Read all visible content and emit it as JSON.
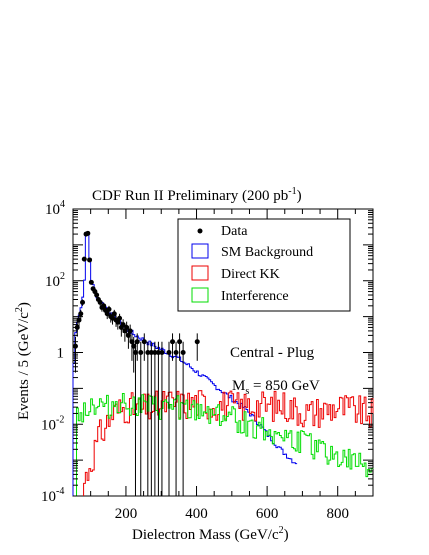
{
  "chart_data": {
    "type": "histogram",
    "title_main": "CDF Run II Preliminary (200 pb",
    "title_sup": "-1",
    "title_close": ")",
    "xlabel_main": "Dielectron Mass (GeV/c",
    "xlabel_sup": "2",
    "xlabel_close": ")",
    "ylabel_main": "Events / 5 (GeV/c",
    "ylabel_sup": "2",
    "ylabel_close": ")",
    "xlim": [
      50,
      900
    ],
    "ylim_log10": [
      -4,
      4
    ],
    "y_scale": "log",
    "x_ticks": [
      {
        "value": 200,
        "label": "200"
      },
      {
        "value": 400,
        "label": "400"
      },
      {
        "value": 600,
        "label": "600"
      },
      {
        "value": 800,
        "label": "800"
      }
    ],
    "y_ticks": [
      {
        "exp": 4,
        "base": "10",
        "sup": "4"
      },
      {
        "exp": 2,
        "base": "10",
        "sup": "2"
      },
      {
        "exp": 0,
        "base": "1",
        "sup": ""
      },
      {
        "exp": -2,
        "base": "10",
        "sup": "-2"
      },
      {
        "exp": -4,
        "base": "10",
        "sup": "-4"
      }
    ],
    "legend": {
      "placement": "top-right",
      "entries": [
        {
          "label": "Data",
          "style": "marker"
        },
        {
          "label": "SM Background",
          "style": "box",
          "color": "#0000ee"
        },
        {
          "label": "Direct KK",
          "style": "box",
          "color": "#ee0000"
        },
        {
          "label": "Interference",
          "style": "box",
          "color": "#00dd00"
        }
      ]
    },
    "annotations": {
      "region": "Central - Plug",
      "mass_main": "M",
      "mass_sub": "s",
      "mass_value": " = 850 GeV"
    },
    "colors": {
      "sm": "#0000ee",
      "kk": "#ee0000",
      "interference": "#00dd00",
      "data": "#000000"
    },
    "bin_width": 5,
    "sm_background": [
      [
        50,
        0.5
      ],
      [
        55,
        3.5
      ],
      [
        60,
        8
      ],
      [
        65,
        12
      ],
      [
        70,
        18
      ],
      [
        75,
        35
      ],
      [
        80,
        120
      ],
      [
        85,
        1800
      ],
      [
        90,
        2000
      ],
      [
        95,
        400
      ],
      [
        100,
        100
      ],
      [
        110,
        50
      ],
      [
        120,
        30
      ],
      [
        140,
        18
      ],
      [
        160,
        11
      ],
      [
        180,
        7
      ],
      [
        200,
        4.5
      ],
      [
        220,
        3.2
      ],
      [
        240,
        2.5
      ],
      [
        260,
        1.9
      ],
      [
        280,
        1.5
      ],
      [
        300,
        1.2
      ],
      [
        320,
        0.95
      ],
      [
        340,
        0.75
      ],
      [
        360,
        0.55
      ],
      [
        380,
        0.4
      ],
      [
        400,
        0.28
      ],
      [
        420,
        0.2
      ],
      [
        440,
        0.14
      ],
      [
        460,
        0.1
      ],
      [
        480,
        0.07
      ],
      [
        500,
        0.05
      ],
      [
        520,
        0.035
      ],
      [
        540,
        0.025
      ],
      [
        560,
        0.015
      ],
      [
        580,
        0.009
      ],
      [
        600,
        0.005
      ],
      [
        620,
        0.003
      ],
      [
        640,
        0.0018
      ],
      [
        660,
        0.0012
      ],
      [
        680,
        0.0008
      ]
    ],
    "direct_kk": [
      [
        80,
        0.00025
      ],
      [
        120,
        0.004
      ],
      [
        160,
        0.02
      ],
      [
        200,
        0.03
      ],
      [
        240,
        0.025
      ],
      [
        280,
        0.03
      ],
      [
        320,
        0.04
      ],
      [
        360,
        0.035
      ],
      [
        400,
        0.04
      ],
      [
        440,
        0.035
      ],
      [
        480,
        0.035
      ],
      [
        520,
        0.03
      ],
      [
        560,
        0.035
      ],
      [
        600,
        0.03
      ],
      [
        640,
        0.035
      ],
      [
        680,
        0.025
      ],
      [
        720,
        0.02
      ],
      [
        760,
        0.025
      ],
      [
        800,
        0.03
      ],
      [
        840,
        0.025
      ],
      [
        880,
        0.02
      ],
      [
        900,
        0.02
      ]
    ],
    "interference": [
      [
        60,
        0.02
      ],
      [
        100,
        0.035
      ],
      [
        140,
        0.03
      ],
      [
        180,
        0.04
      ],
      [
        220,
        0.035
      ],
      [
        260,
        0.03
      ],
      [
        300,
        0.025
      ],
      [
        340,
        0.035
      ],
      [
        380,
        0.02
      ],
      [
        420,
        0.025
      ],
      [
        460,
        0.02
      ],
      [
        500,
        0.015
      ],
      [
        540,
        0.01
      ],
      [
        580,
        0.008
      ],
      [
        620,
        0.006
      ],
      [
        660,
        0.004
      ],
      [
        700,
        0.003
      ],
      [
        740,
        0.002
      ],
      [
        780,
        0.0015
      ],
      [
        820,
        0.001
      ],
      [
        860,
        0.0008
      ],
      [
        900,
        0.0006
      ]
    ],
    "data_points": [
      {
        "x": 57,
        "y": 1.5
      },
      {
        "x": 62,
        "y": 5
      },
      {
        "x": 67,
        "y": 8
      },
      {
        "x": 72,
        "y": 12
      },
      {
        "x": 77,
        "y": 25
      },
      {
        "x": 82,
        "y": 400
      },
      {
        "x": 87,
        "y": 2000
      },
      {
        "x": 92,
        "y": 2100
      },
      {
        "x": 97,
        "y": 380
      },
      {
        "x": 102,
        "y": 90
      },
      {
        "x": 107,
        "y": 60
      },
      {
        "x": 112,
        "y": 50
      },
      {
        "x": 117,
        "y": 40
      },
      {
        "x": 122,
        "y": 30
      },
      {
        "x": 127,
        "y": 25
      },
      {
        "x": 132,
        "y": 18
      },
      {
        "x": 137,
        "y": 20
      },
      {
        "x": 142,
        "y": 15
      },
      {
        "x": 147,
        "y": 12
      },
      {
        "x": 152,
        "y": 16
      },
      {
        "x": 157,
        "y": 10
      },
      {
        "x": 162,
        "y": 9
      },
      {
        "x": 167,
        "y": 12
      },
      {
        "x": 172,
        "y": 8
      },
      {
        "x": 177,
        "y": 7
      },
      {
        "x": 182,
        "y": 9
      },
      {
        "x": 187,
        "y": 5
      },
      {
        "x": 192,
        "y": 6
      },
      {
        "x": 197,
        "y": 4
      },
      {
        "x": 202,
        "y": 5
      },
      {
        "x": 207,
        "y": 3
      },
      {
        "x": 212,
        "y": 4
      },
      {
        "x": 217,
        "y": 2
      },
      {
        "x": 222,
        "y": 1.5
      },
      {
        "x": 227,
        "y": 1
      },
      {
        "x": 232,
        "y": 2
      },
      {
        "x": 242,
        "y": 1
      },
      {
        "x": 252,
        "y": 2
      },
      {
        "x": 262,
        "y": 1
      },
      {
        "x": 272,
        "y": 1
      },
      {
        "x": 282,
        "y": 1
      },
      {
        "x": 292,
        "y": 1
      },
      {
        "x": 302,
        "y": 1
      },
      {
        "x": 322,
        "y": 1
      },
      {
        "x": 332,
        "y": 2
      },
      {
        "x": 342,
        "y": 1
      },
      {
        "x": 352,
        "y": 2
      },
      {
        "x": 362,
        "y": 1
      },
      {
        "x": 402,
        "y": 2
      }
    ]
  }
}
